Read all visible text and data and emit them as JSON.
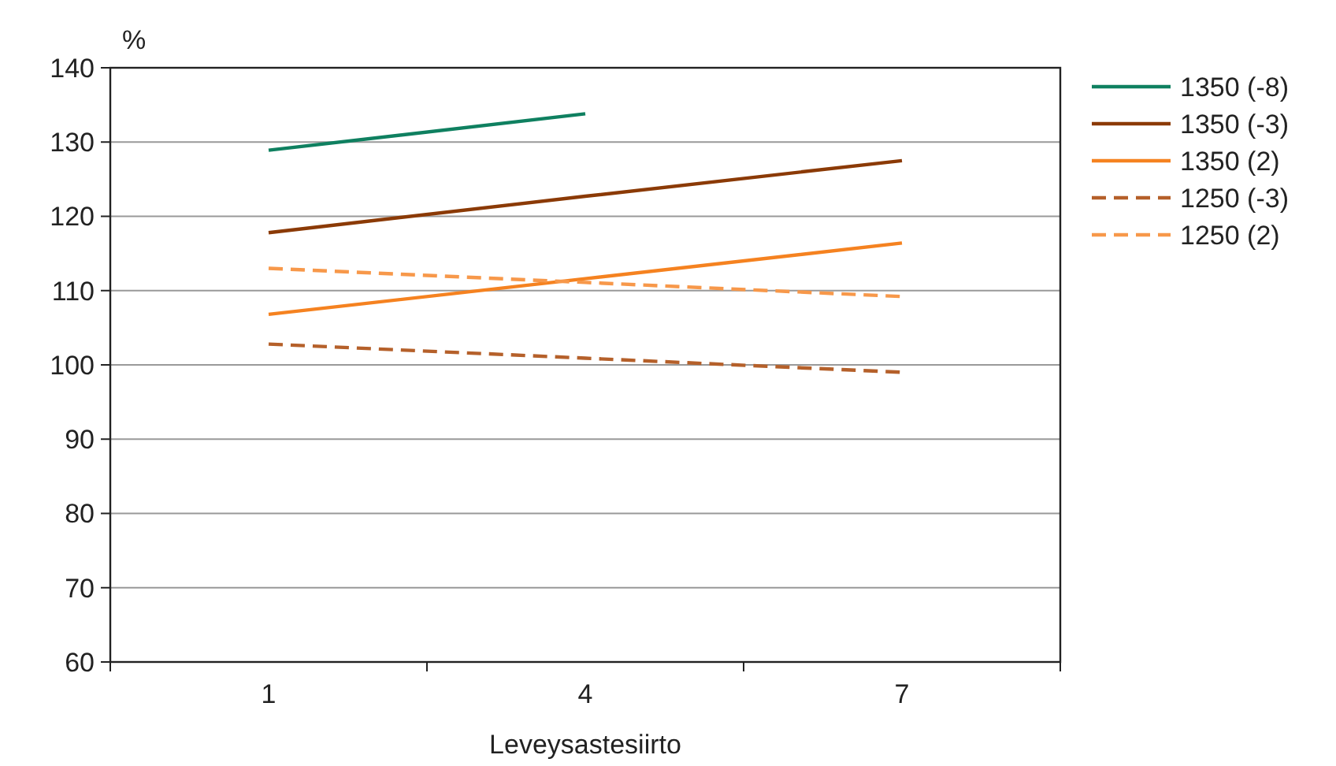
{
  "chart_data": {
    "type": "line",
    "xlabel": "Leveysastesiirto",
    "ylabel": "%",
    "categories": [
      "1",
      "4",
      "7"
    ],
    "series": [
      {
        "name": "1350 (-8)",
        "color": "#0f8060",
        "values": [
          128.9,
          133.8,
          null
        ],
        "line_style": "solid"
      },
      {
        "name": "1350 (-3)",
        "color": "#8b3a06",
        "values": [
          117.8,
          122.7,
          127.5
        ],
        "line_style": "solid"
      },
      {
        "name": "1350 (2)",
        "color": "#f58220",
        "values": [
          106.8,
          111.6,
          116.4
        ],
        "line_style": "solid"
      },
      {
        "name": "1250 (-3)",
        "color": "#b5602a",
        "values": [
          102.8,
          100.9,
          99.0
        ],
        "line_style": "dashed"
      },
      {
        "name": "1250 (2)",
        "color": "#f7984a",
        "values": [
          113.0,
          111.1,
          109.2
        ],
        "line_style": "dashed"
      }
    ],
    "ylim": [
      60,
      140
    ],
    "yticks": [
      60,
      70,
      80,
      90,
      100,
      110,
      120,
      130,
      140
    ],
    "grid": "y",
    "legend": "right"
  }
}
